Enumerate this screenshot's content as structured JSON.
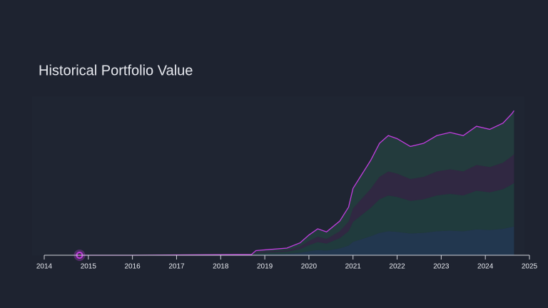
{
  "chart_data": {
    "type": "line",
    "title": "Historical Portfolio Value",
    "x": [
      2014.8,
      2016,
      2018.7,
      2018.8,
      2019.5,
      2019.8,
      2020.0,
      2020.2,
      2020.4,
      2020.7,
      2020.9,
      2021.0,
      2021.2,
      2021.4,
      2021.6,
      2021.8,
      2022.0,
      2022.3,
      2022.6,
      2022.9,
      2023.2,
      2023.5,
      2023.8,
      2024.1,
      2024.4,
      2024.6,
      2024.65
    ],
    "xlim": [
      2014,
      2025
    ],
    "xticks": [
      2014,
      2015,
      2016,
      2017,
      2018,
      2019,
      2020,
      2021,
      2022,
      2023,
      2024,
      2025
    ],
    "ylim": [
      0,
      100
    ],
    "series": [
      {
        "color": "#c23ee0",
        "values": [
          0,
          0,
          0.5,
          3,
          4.6,
          8,
          13,
          17,
          15,
          22,
          31,
          43,
          52,
          61,
          72,
          77,
          75,
          70,
          72,
          77,
          79,
          77,
          83,
          81,
          85,
          91,
          93
        ]
      }
    ],
    "stack": [
      {
        "color": "#233b55",
        "values": [
          0,
          0,
          0.1,
          0.6,
          0.9,
          1.6,
          2.6,
          3.4,
          3,
          4.4,
          6.2,
          8.6,
          10.4,
          12.2,
          14.4,
          15.4,
          15,
          14,
          14.4,
          15.4,
          15.8,
          15.4,
          16.6,
          16.2,
          17,
          18.2,
          18.6
        ]
      },
      {
        "color": "#21403f",
        "values": [
          0,
          0,
          0.15,
          0.9,
          1.38,
          2.4,
          3.9,
          5.1,
          4.5,
          6.6,
          9.3,
          12.9,
          15.6,
          18.3,
          21.6,
          23.1,
          22.5,
          21,
          21.6,
          23.1,
          23.7,
          23.1,
          24.9,
          24.3,
          25.5,
          27.3,
          27.9
        ]
      },
      {
        "color": "#342945",
        "values": [
          0,
          0,
          0.1,
          0.6,
          0.9,
          1.6,
          2.6,
          3.4,
          3,
          4.4,
          6.2,
          8.6,
          10.4,
          12.2,
          14.4,
          15.4,
          15,
          14,
          14.4,
          15.4,
          15.8,
          15.4,
          16.6,
          16.2,
          17,
          18.2,
          18.6
        ]
      },
      {
        "color": "#24403f",
        "values": [
          0,
          0,
          0.15,
          0.9,
          1.38,
          2.4,
          3.9,
          5.1,
          4.5,
          6.6,
          9.3,
          12.9,
          15.6,
          18.3,
          21.6,
          23.1,
          22.5,
          21,
          21.6,
          23.1,
          23.7,
          23.1,
          24.9,
          24.3,
          25.5,
          27.3,
          27.9
        ]
      }
    ]
  }
}
